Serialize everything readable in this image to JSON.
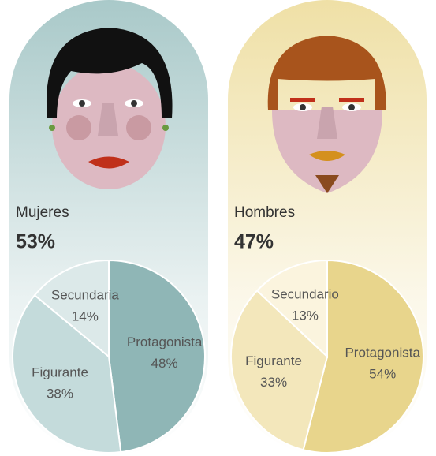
{
  "chart_data": [
    {
      "type": "pie",
      "title": "Mujeres",
      "total": {
        "value": 53,
        "label": "53%"
      },
      "categories": [
        "Protagonista",
        "Figurante",
        "Secundaria"
      ],
      "values": [
        48,
        38,
        14
      ],
      "value_labels": [
        "48%",
        "38%",
        "14%"
      ],
      "colors": [
        "#8fb6b6",
        "#c4dbdb",
        "#dce9e9"
      ],
      "background": "#a9c9c9"
    },
    {
      "type": "pie",
      "title": "Hombres",
      "total": {
        "value": 47,
        "label": "47%"
      },
      "categories": [
        "Protagonista",
        "Figurante",
        "Secundario"
      ],
      "values": [
        54,
        33,
        13
      ],
      "value_labels": [
        "54%",
        "33%",
        "13%"
      ],
      "colors": [
        "#e8d58c",
        "#f3e7bb",
        "#fbf4de"
      ],
      "background": "#efe0a6"
    }
  ]
}
